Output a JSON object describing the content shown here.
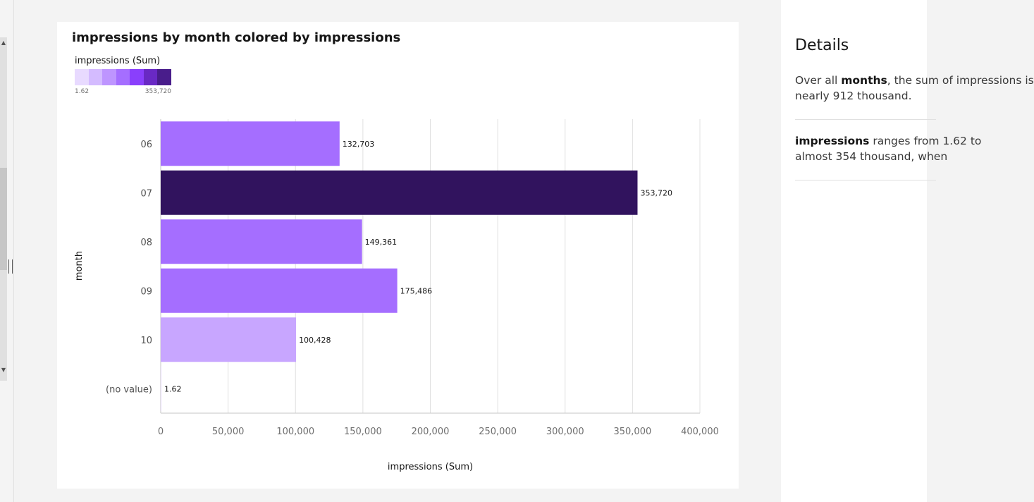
{
  "left_rail": {
    "up_glyph": "▲",
    "down_glyph": "▼"
  },
  "chart": {
    "title": "impressions by month colored by impressions",
    "legend": {
      "title": "impressions (Sum)",
      "min_label": "1.62",
      "max_label": "353,720",
      "colors": [
        "#e8daff",
        "#d4bbff",
        "#be95ff",
        "#a56eff",
        "#8a3ffc",
        "#6929c4",
        "#491d8b"
      ]
    }
  },
  "chart_data": {
    "type": "bar",
    "orientation": "horizontal",
    "title": "impressions by month colored by impressions",
    "xlabel": "impressions (Sum)",
    "ylabel": "month",
    "categories": [
      "06",
      "07",
      "08",
      "09",
      "10",
      "(no value)"
    ],
    "values": [
      132703,
      353720,
      149361,
      175486,
      100428,
      1.62
    ],
    "value_labels": [
      "132,703",
      "353,720",
      "149,361",
      "175,486",
      "100,428",
      "1.62"
    ],
    "bar_colors": [
      "#a56eff",
      "#31135e",
      "#a56eff",
      "#a56eff",
      "#c8a6ff",
      "#e8daff"
    ],
    "xlim": [
      0,
      400000
    ],
    "xticks": [
      0,
      50000,
      100000,
      150000,
      200000,
      250000,
      300000,
      350000,
      400000
    ],
    "xtick_labels": [
      "0",
      "50,000",
      "100,000",
      "150,000",
      "200,000",
      "250,000",
      "300,000",
      "350,000",
      "400,000"
    ],
    "grid": true,
    "legend_position": "top-left"
  },
  "details": {
    "title": "Details",
    "item1": {
      "prefix": "Over all ",
      "bold": "months",
      "suffix": ", the sum of impressions is",
      "line2": "nearly 912 thousand."
    },
    "item2": {
      "bold": "impressions",
      "suffix": " ranges from 1.62 to",
      "line2": "almost 354 thousand, when"
    }
  }
}
